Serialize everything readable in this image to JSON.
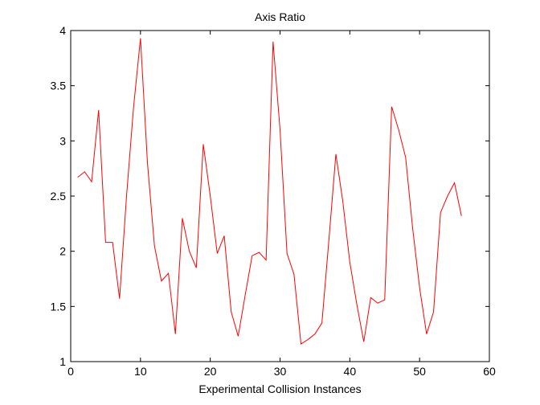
{
  "chart_data": {
    "type": "line",
    "title": "Axis Ratio",
    "xlabel": "Experimental Collision Instances",
    "ylabel": "",
    "xlim": [
      0,
      60
    ],
    "ylim": [
      1,
      4
    ],
    "xticks": [
      "0",
      "10",
      "20",
      "30",
      "40",
      "50",
      "60"
    ],
    "yticks": [
      "1",
      "1.5",
      "2",
      "2.5",
      "3",
      "3.5",
      "4"
    ],
    "grid": false,
    "line_color": "#ff0000",
    "series": [
      {
        "x": [
          1,
          2,
          3,
          4,
          5,
          6,
          7,
          8,
          9,
          10,
          11,
          12,
          13,
          14,
          15,
          16,
          17,
          18,
          19,
          20,
          21,
          22,
          23,
          24,
          25,
          26,
          27,
          28,
          29,
          30,
          31,
          32,
          33,
          34,
          35,
          36,
          37,
          38,
          39,
          40,
          41,
          42,
          43,
          44,
          45,
          46,
          47,
          48,
          49,
          50,
          51,
          52,
          53,
          54,
          55,
          56
        ],
        "values": [
          2.67,
          2.72,
          2.63,
          3.28,
          2.08,
          2.08,
          1.57,
          2.5,
          3.3,
          3.93,
          2.8,
          2.05,
          1.73,
          1.8,
          1.25,
          2.3,
          2.0,
          1.85,
          2.97,
          2.5,
          1.98,
          2.14,
          1.45,
          1.23,
          1.6,
          1.96,
          1.99,
          1.92,
          3.9,
          3.1,
          1.98,
          1.79,
          1.16,
          1.2,
          1.25,
          1.35,
          2.1,
          2.88,
          2.45,
          1.9,
          1.52,
          1.18,
          1.58,
          1.53,
          1.56,
          3.31,
          3.1,
          2.85,
          2.21,
          1.67,
          1.25,
          1.45,
          2.35,
          2.5,
          2.62,
          2.32
        ]
      }
    ]
  }
}
